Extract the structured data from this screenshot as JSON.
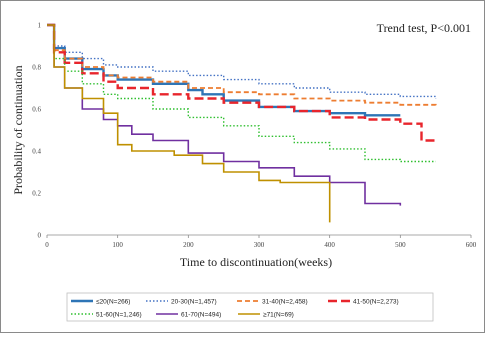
{
  "chart_data": {
    "type": "line",
    "subtype": "kaplan-meier step curves",
    "xlabel": "Time to discontinuation(weeks)",
    "ylabel": "Probability of continuation",
    "annotation": "Trend test, P<0.001",
    "xlim": [
      0,
      600
    ],
    "ylim": [
      0,
      1
    ],
    "x_ticks": [
      "0",
      "100",
      "200",
      "300",
      "400",
      "500",
      "600"
    ],
    "y_ticks": [
      "0",
      "0.2",
      "0.4",
      "0.6",
      "0.8",
      "1"
    ],
    "grid": false,
    "legend_position": "bottom",
    "series": [
      {
        "name": "≤20(N=266)",
        "color": "#2e75b6",
        "dash": "solid",
        "x": [
          0,
          10,
          25,
          50,
          80,
          100,
          150,
          200,
          220,
          250,
          300,
          350,
          400,
          450,
          500
        ],
        "y": [
          1.0,
          0.89,
          0.84,
          0.79,
          0.76,
          0.74,
          0.72,
          0.69,
          0.67,
          0.64,
          0.61,
          0.59,
          0.58,
          0.57,
          0.57
        ]
      },
      {
        "name": "20-30(N=1,457)",
        "color": "#4472c4",
        "dash": "dot",
        "x": [
          0,
          10,
          25,
          50,
          80,
          100,
          150,
          200,
          250,
          300,
          350,
          400,
          450,
          500,
          550
        ],
        "y": [
          1.0,
          0.9,
          0.87,
          0.84,
          0.81,
          0.8,
          0.78,
          0.76,
          0.74,
          0.72,
          0.7,
          0.68,
          0.67,
          0.66,
          0.65
        ]
      },
      {
        "name": "31-40(N=2,458)",
        "color": "#ed7d31",
        "dash": "dash",
        "x": [
          0,
          10,
          25,
          50,
          80,
          100,
          150,
          200,
          250,
          300,
          350,
          400,
          450,
          500,
          550
        ],
        "y": [
          1.0,
          0.88,
          0.84,
          0.8,
          0.76,
          0.75,
          0.73,
          0.7,
          0.68,
          0.67,
          0.65,
          0.64,
          0.63,
          0.62,
          0.61
        ]
      },
      {
        "name": "41-50(N=2,273)",
        "color": "#e8252c",
        "dash": "longdash",
        "x": [
          0,
          10,
          25,
          50,
          80,
          100,
          150,
          200,
          250,
          300,
          350,
          400,
          450,
          500,
          530,
          550
        ],
        "y": [
          1.0,
          0.87,
          0.82,
          0.77,
          0.73,
          0.7,
          0.67,
          0.65,
          0.63,
          0.61,
          0.59,
          0.56,
          0.55,
          0.53,
          0.45,
          0.45
        ]
      },
      {
        "name": "51-60(N=1,246)",
        "color": "#2fbf2f",
        "dash": "dot",
        "x": [
          0,
          10,
          25,
          50,
          80,
          100,
          150,
          200,
          250,
          300,
          350,
          400,
          450,
          500,
          550
        ],
        "y": [
          1.0,
          0.84,
          0.78,
          0.72,
          0.67,
          0.65,
          0.6,
          0.56,
          0.52,
          0.47,
          0.44,
          0.41,
          0.36,
          0.35,
          0.35
        ]
      },
      {
        "name": "61-70(N=494)",
        "color": "#7030a0",
        "dash": "solid",
        "x": [
          0,
          10,
          25,
          50,
          80,
          100,
          120,
          150,
          200,
          250,
          300,
          350,
          400,
          420,
          450,
          500
        ],
        "y": [
          1.0,
          0.8,
          0.7,
          0.6,
          0.55,
          0.52,
          0.48,
          0.45,
          0.39,
          0.35,
          0.32,
          0.28,
          0.25,
          0.25,
          0.15,
          0.14
        ]
      },
      {
        "name": "≥71(N=69)",
        "color": "#bf9000",
        "dash": "solid",
        "x": [
          0,
          10,
          25,
          50,
          80,
          100,
          120,
          150,
          180,
          220,
          250,
          300,
          330,
          390,
          400
        ],
        "y": [
          1.0,
          0.8,
          0.7,
          0.65,
          0.58,
          0.43,
          0.4,
          0.4,
          0.38,
          0.34,
          0.3,
          0.26,
          0.25,
          0.25,
          0.06
        ]
      }
    ]
  }
}
